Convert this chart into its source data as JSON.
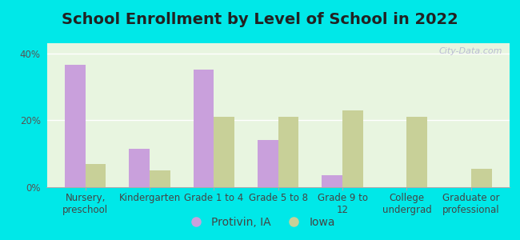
{
  "title": "School Enrollment by Level of School in 2022",
  "categories": [
    "Nursery,\npreschool",
    "Kindergarten",
    "Grade 1 to 4",
    "Grade 5 to 8",
    "Grade 9 to\n12",
    "College\nundergrad",
    "Graduate or\nprofessional"
  ],
  "protivin": [
    36.5,
    11.5,
    35.0,
    14.0,
    3.5,
    0.0,
    0.0
  ],
  "iowa": [
    7.0,
    5.0,
    21.0,
    21.0,
    23.0,
    21.0,
    5.5
  ],
  "protivin_color": "#c9a0dc",
  "iowa_color": "#c8d098",
  "background_outer": "#00e8e8",
  "background_inner_top": "#e8f5e0",
  "background_inner_bottom": "#d0f0e8",
  "ylim": [
    0,
    43
  ],
  "yticks": [
    0,
    20,
    40
  ],
  "ytick_labels": [
    "0%",
    "20%",
    "40%"
  ],
  "legend_labels": [
    "Protivin, IA",
    "Iowa"
  ],
  "watermark": "City-Data.com",
  "title_fontsize": 14,
  "tick_fontsize": 8.5,
  "legend_fontsize": 10
}
